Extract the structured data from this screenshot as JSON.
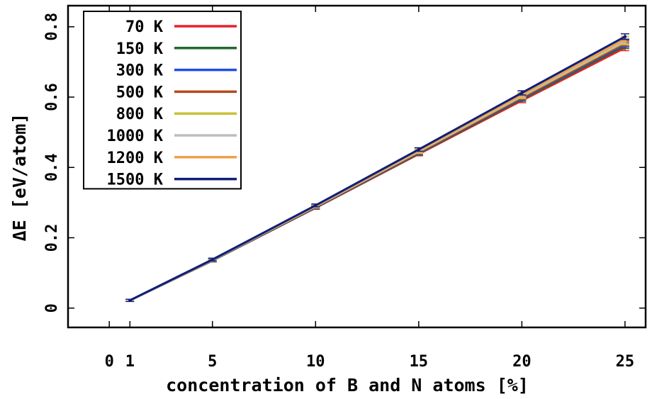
{
  "chart_data": {
    "type": "line",
    "title": "",
    "xlabel": "concentration of B and N atoms [%]",
    "ylabel": "ΔE [eV/atom]",
    "x": [
      1,
      5,
      10,
      15,
      20,
      25
    ],
    "xlim": [
      -2,
      26
    ],
    "ylim": [
      -0.055,
      0.86
    ],
    "xticks": [
      0,
      1,
      5,
      10,
      15,
      20,
      25
    ],
    "xtick_labels": [
      "0",
      "1",
      "5",
      "10",
      "15",
      "20",
      "25"
    ],
    "yticks": [
      0,
      0.2,
      0.4,
      0.6,
      0.8
    ],
    "ytick_labels": [
      "0",
      "0.2",
      "0.4",
      "0.6",
      "0.8"
    ],
    "grid": false,
    "legend_position": "top-left",
    "error_bars": true,
    "series": [
      {
        "name": "70 K",
        "color": "#e8222a",
        "values": [
          0.022,
          0.135,
          0.285,
          0.438,
          0.59,
          0.74
        ],
        "errors": [
          0.003,
          0.004,
          0.004,
          0.005,
          0.006,
          0.008
        ]
      },
      {
        "name": "150 K",
        "color": "#1e6b2e",
        "values": [
          0.022,
          0.135,
          0.286,
          0.44,
          0.594,
          0.746
        ],
        "errors": [
          0.003,
          0.004,
          0.004,
          0.005,
          0.006,
          0.008
        ]
      },
      {
        "name": "300 K",
        "color": "#1f4ee8",
        "values": [
          0.022,
          0.136,
          0.287,
          0.442,
          0.597,
          0.75
        ],
        "errors": [
          0.003,
          0.004,
          0.004,
          0.005,
          0.006,
          0.008
        ]
      },
      {
        "name": "500 K",
        "color": "#b8471e",
        "values": [
          0.022,
          0.136,
          0.288,
          0.443,
          0.599,
          0.753
        ],
        "errors": [
          0.003,
          0.004,
          0.004,
          0.005,
          0.006,
          0.008
        ]
      },
      {
        "name": "800 K",
        "color": "#c8c236",
        "values": [
          0.022,
          0.137,
          0.289,
          0.445,
          0.602,
          0.757
        ],
        "errors": [
          0.003,
          0.004,
          0.004,
          0.005,
          0.006,
          0.008
        ]
      },
      {
        "name": "1000 K",
        "color": "#bdbdbd",
        "values": [
          0.022,
          0.137,
          0.29,
          0.446,
          0.604,
          0.76
        ],
        "errors": [
          0.003,
          0.004,
          0.004,
          0.005,
          0.006,
          0.008
        ]
      },
      {
        "name": "1200 K",
        "color": "#f0a048",
        "values": [
          0.022,
          0.138,
          0.291,
          0.448,
          0.607,
          0.765
        ],
        "errors": [
          0.003,
          0.004,
          0.004,
          0.005,
          0.006,
          0.008
        ]
      },
      {
        "name": "1500 K",
        "color": "#0d1f7a",
        "values": [
          0.022,
          0.138,
          0.292,
          0.451,
          0.612,
          0.772
        ],
        "errors": [
          0.003,
          0.004,
          0.004,
          0.005,
          0.006,
          0.008
        ]
      }
    ]
  }
}
